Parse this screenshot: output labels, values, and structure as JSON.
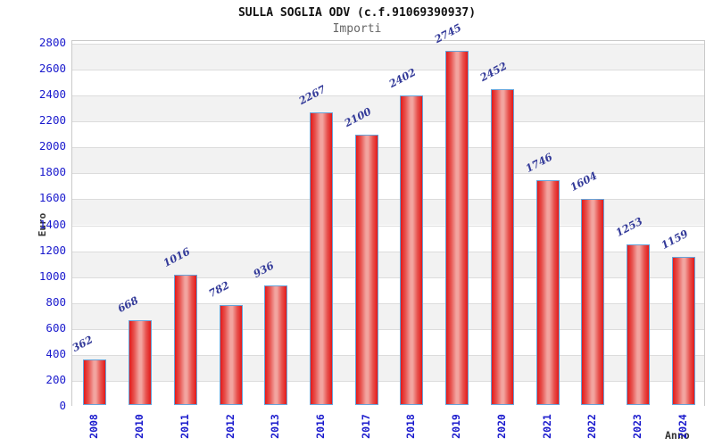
{
  "chart_data": {
    "type": "bar",
    "title": "SULLA SOGLIA ODV (c.f.91069390937)",
    "subtitle": "Importi",
    "xlabel": "Anno",
    "ylabel": "Euro",
    "categories": [
      "2008",
      "2010",
      "2011",
      "2012",
      "2013",
      "2016",
      "2017",
      "2018",
      "2019",
      "2020",
      "2021",
      "2022",
      "2023",
      "2024"
    ],
    "values": [
      362,
      668,
      1016,
      782,
      936,
      2267,
      2100,
      2402,
      2745,
      2452,
      1746,
      1604,
      1253,
      1159
    ],
    "ylim": [
      0,
      2800
    ],
    "ytick_step": 200,
    "grid": true,
    "legend": "none",
    "colors": {
      "bar_edge_red": "#e31a1a",
      "bar_light_red": "#e7534f",
      "bar_mid_pink": "#f2a49f",
      "bar_border_blue": "#66a3d9",
      "tick_label_blue": "#1a1acd",
      "value_label_navy": "#333a99",
      "band_gray": "#f2f2f2",
      "band_white": "#ffffff",
      "gridline": "#dcdcdc",
      "frame": "#c9c9c9",
      "title_color": "#111111",
      "subtitle_color": "#666666",
      "axis_title_color": "#333333",
      "background": "#ffffff"
    }
  }
}
